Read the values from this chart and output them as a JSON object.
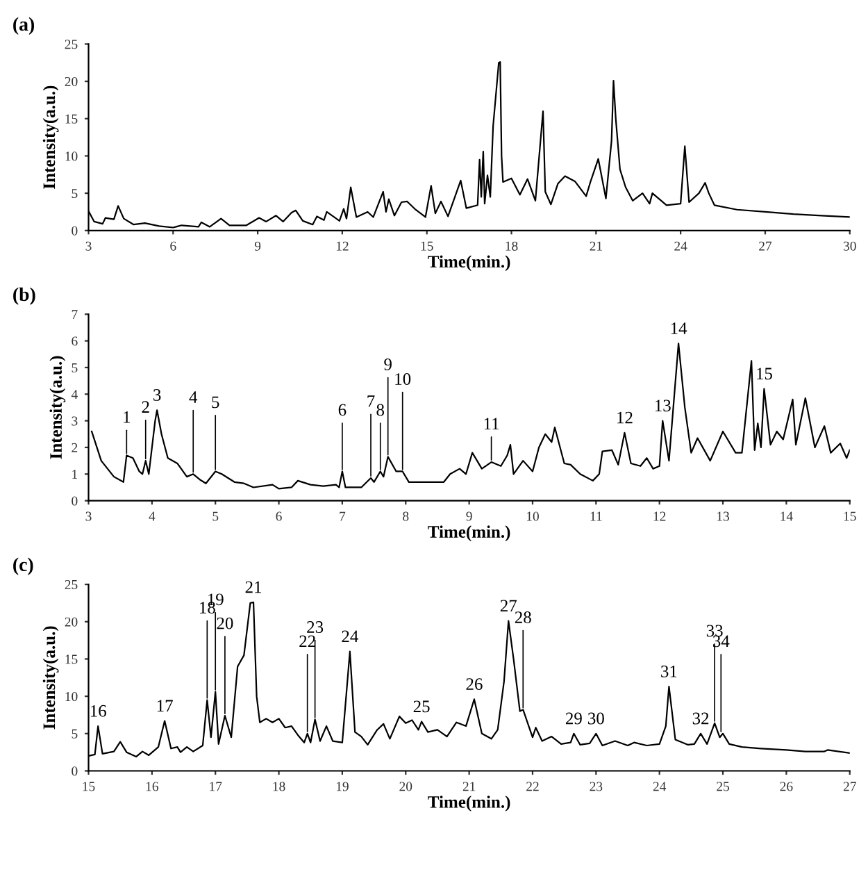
{
  "chart_data": [
    {
      "type": "line",
      "title": "(a)",
      "xlabel": "Time(min.)",
      "ylabel": "Intensity(a.u.)",
      "xlim": [
        3,
        30
      ],
      "xticks": [
        3,
        6,
        9,
        12,
        15,
        18,
        21,
        24,
        27,
        30
      ],
      "ylim": [
        0,
        25
      ],
      "yticks": [
        0,
        5,
        10,
        15,
        20,
        25
      ],
      "grid": false,
      "legend": false,
      "marker": "none",
      "line_style": "solid",
      "series": [
        {
          "color": "#000000",
          "x": [
            3.0,
            3.2,
            3.5,
            3.6,
            3.9,
            4.05,
            4.25,
            4.6,
            5.0,
            5.5,
            6.0,
            6.3,
            6.9,
            7.0,
            7.3,
            7.7,
            8.0,
            8.6,
            9.05,
            9.3,
            9.65,
            9.9,
            10.2,
            10.35,
            10.6,
            10.95,
            11.1,
            11.35,
            11.45,
            11.9,
            12.05,
            12.15,
            12.3,
            12.5,
            12.9,
            13.1,
            13.45,
            13.55,
            13.65,
            13.85,
            14.1,
            14.3,
            14.6,
            14.95,
            15.15,
            15.3,
            15.5,
            15.75,
            16.2,
            16.4,
            16.8,
            16.87,
            16.93,
            17.0,
            17.05,
            17.15,
            17.25,
            17.35,
            17.55,
            17.6,
            17.65,
            17.7,
            18.0,
            18.3,
            18.57,
            18.85,
            19.12,
            19.2,
            19.4,
            19.65,
            19.9,
            20.25,
            20.65,
            20.8,
            21.08,
            21.35,
            21.55,
            21.62,
            21.7,
            21.85,
            22.05,
            22.3,
            22.65,
            22.9,
            23.0,
            23.5,
            24.0,
            24.15,
            24.3,
            24.65,
            24.87,
            25.0,
            25.2,
            26.0,
            27.0,
            28.0,
            29.0,
            30.0
          ],
          "values": [
            2.6,
            1.2,
            0.9,
            1.7,
            1.5,
            3.3,
            1.6,
            0.8,
            1.0,
            0.6,
            0.4,
            0.7,
            0.5,
            1.1,
            0.5,
            1.6,
            0.7,
            0.7,
            1.7,
            1.2,
            2.0,
            1.2,
            2.4,
            2.7,
            1.3,
            0.8,
            1.9,
            1.4,
            2.5,
            1.3,
            2.9,
            1.6,
            5.8,
            1.8,
            2.5,
            1.8,
            5.2,
            2.5,
            4.2,
            2.0,
            3.8,
            3.9,
            2.8,
            1.8,
            6.0,
            2.3,
            3.9,
            1.9,
            6.7,
            3.0,
            3.4,
            9.5,
            4.5,
            10.6,
            3.6,
            7.4,
            4.5,
            14.0,
            22.5,
            22.6,
            10.0,
            6.5,
            7.0,
            4.8,
            6.9,
            4.0,
            16.0,
            5.2,
            3.5,
            6.3,
            7.3,
            6.6,
            4.6,
            6.5,
            9.6,
            4.3,
            12.0,
            20.1,
            15.0,
            8.2,
            5.8,
            4.0,
            5.0,
            3.6,
            5.0,
            3.4,
            3.6,
            11.3,
            3.8,
            5.0,
            6.4,
            5.0,
            3.4,
            2.8,
            2.5,
            2.2,
            2.0,
            1.8
          ]
        }
      ]
    },
    {
      "type": "line",
      "title": "(b)",
      "xlabel": "Time(min.)",
      "ylabel": "Intensity(a.u.)",
      "xlim": [
        3,
        15
      ],
      "xticks": [
        3,
        4,
        5,
        6,
        7,
        8,
        9,
        10,
        11,
        12,
        13,
        14,
        15
      ],
      "ylim": [
        0,
        7
      ],
      "yticks": [
        0,
        1,
        2,
        3,
        4,
        5,
        6,
        7
      ],
      "grid": false,
      "legend": false,
      "marker": "none",
      "line_style": "solid",
      "series": [
        {
          "color": "#000000",
          "x": [
            3.05,
            3.2,
            3.4,
            3.55,
            3.6,
            3.7,
            3.8,
            3.85,
            3.9,
            3.95,
            4.05,
            4.08,
            4.15,
            4.25,
            4.4,
            4.55,
            4.65,
            4.75,
            4.85,
            5.0,
            5.1,
            5.3,
            5.45,
            5.6,
            5.9,
            6.0,
            6.2,
            6.3,
            6.5,
            6.7,
            6.9,
            6.95,
            7.0,
            7.05,
            7.3,
            7.45,
            7.5,
            7.6,
            7.65,
            7.72,
            7.85,
            7.95,
            8.05,
            8.3,
            8.6,
            8.7,
            8.85,
            8.95,
            9.05,
            9.2,
            9.35,
            9.5,
            9.6,
            9.65,
            9.7,
            9.85,
            10.0,
            10.1,
            10.2,
            10.3,
            10.35,
            10.5,
            10.6,
            10.75,
            10.95,
            11.05,
            11.1,
            11.25,
            11.35,
            11.45,
            11.55,
            11.7,
            11.8,
            11.9,
            12.0,
            12.05,
            12.15,
            12.3,
            12.4,
            12.5,
            12.6,
            12.8,
            13.0,
            13.2,
            13.3,
            13.45,
            13.5,
            13.55,
            13.6,
            13.65,
            13.75,
            13.85,
            13.95,
            14.1,
            14.15,
            14.3,
            14.45,
            14.6,
            14.7,
            14.85,
            14.95,
            15.0
          ],
          "values": [
            2.6,
            1.5,
            0.9,
            0.7,
            1.7,
            1.6,
            1.1,
            1.0,
            1.5,
            1.0,
            3.0,
            3.4,
            2.5,
            1.6,
            1.4,
            0.9,
            1.0,
            0.8,
            0.65,
            1.1,
            1.0,
            0.7,
            0.65,
            0.5,
            0.6,
            0.45,
            0.5,
            0.75,
            0.6,
            0.55,
            0.6,
            0.5,
            1.1,
            0.5,
            0.5,
            0.85,
            0.7,
            1.1,
            0.9,
            1.65,
            1.1,
            1.1,
            0.7,
            0.7,
            0.7,
            1.0,
            1.2,
            1.0,
            1.8,
            1.2,
            1.45,
            1.3,
            1.7,
            2.1,
            1.0,
            1.5,
            1.1,
            2.0,
            2.5,
            2.2,
            2.75,
            1.4,
            1.35,
            1.0,
            0.75,
            1.0,
            1.85,
            1.9,
            1.35,
            2.55,
            1.4,
            1.3,
            1.6,
            1.2,
            1.3,
            3.0,
            1.5,
            5.9,
            3.5,
            1.8,
            2.35,
            1.5,
            2.6,
            1.8,
            1.8,
            5.25,
            1.9,
            2.9,
            2.0,
            4.2,
            2.1,
            2.6,
            2.3,
            3.8,
            2.1,
            3.85,
            2.0,
            2.8,
            1.8,
            2.15,
            1.6,
            1.9
          ]
        }
      ],
      "annotations": [
        {
          "text": "1",
          "x": 3.6,
          "y": 1.7
        },
        {
          "text": "2",
          "x": 3.9,
          "y": 1.5
        },
        {
          "text": "3",
          "x": 4.08,
          "y": 3.4
        },
        {
          "text": "4",
          "x": 4.65,
          "y": 1.0
        },
        {
          "text": "5",
          "x": 5.0,
          "y": 1.1
        },
        {
          "text": "6",
          "x": 7.0,
          "y": 1.1
        },
        {
          "text": "7",
          "x": 7.45,
          "y": 0.85
        },
        {
          "text": "8",
          "x": 7.6,
          "y": 1.1
        },
        {
          "text": "9",
          "x": 7.72,
          "y": 1.65
        },
        {
          "text": "10",
          "x": 7.95,
          "y": 1.1
        },
        {
          "text": "11",
          "x": 9.35,
          "y": 1.45
        },
        {
          "text": "12",
          "x": 11.45,
          "y": 2.55
        },
        {
          "text": "13",
          "x": 12.05,
          "y": 3.0
        },
        {
          "text": "14",
          "x": 12.3,
          "y": 5.9
        },
        {
          "text": "15",
          "x": 13.65,
          "y": 4.2
        }
      ]
    },
    {
      "type": "line",
      "title": "(c)",
      "xlabel": "Time(min.)",
      "ylabel": "Intensity(a.u.)",
      "xlim": [
        15,
        27
      ],
      "xticks": [
        15,
        16,
        17,
        18,
        19,
        20,
        21,
        22,
        23,
        24,
        25,
        26,
        27
      ],
      "ylim": [
        0,
        25
      ],
      "yticks": [
        0,
        5,
        10,
        15,
        20,
        25
      ],
      "grid": false,
      "legend": false,
      "marker": "none",
      "line_style": "solid",
      "series": [
        {
          "color": "#000000",
          "x": [
            15.0,
            15.1,
            15.15,
            15.22,
            15.4,
            15.5,
            15.6,
            15.75,
            15.85,
            15.95,
            16.1,
            16.2,
            16.3,
            16.4,
            16.45,
            16.55,
            16.65,
            16.8,
            16.87,
            16.93,
            17.0,
            17.05,
            17.15,
            17.25,
            17.35,
            17.45,
            17.55,
            17.6,
            17.65,
            17.7,
            17.8,
            17.9,
            18.0,
            18.1,
            18.2,
            18.3,
            18.4,
            18.45,
            18.5,
            18.57,
            18.65,
            18.75,
            18.85,
            19.0,
            19.12,
            19.2,
            19.3,
            19.4,
            19.55,
            19.65,
            19.75,
            19.9,
            20.0,
            20.1,
            20.2,
            20.25,
            20.35,
            20.5,
            20.65,
            20.8,
            20.95,
            21.08,
            21.2,
            21.35,
            21.45,
            21.55,
            21.62,
            21.7,
            21.8,
            21.85,
            22.0,
            22.05,
            22.15,
            22.3,
            22.45,
            22.6,
            22.65,
            22.75,
            22.9,
            23.0,
            23.1,
            23.3,
            23.5,
            23.6,
            23.8,
            24.0,
            24.1,
            24.15,
            24.25,
            24.45,
            24.55,
            24.65,
            24.75,
            24.87,
            24.95,
            25.0,
            25.1,
            25.3,
            25.6,
            26.0,
            26.3,
            26.6,
            26.65,
            27.0
          ],
          "values": [
            2.0,
            2.2,
            6.0,
            2.3,
            2.6,
            3.9,
            2.5,
            1.9,
            2.6,
            2.1,
            3.2,
            6.7,
            3.0,
            3.2,
            2.5,
            3.2,
            2.6,
            3.4,
            9.5,
            4.5,
            10.6,
            3.6,
            7.4,
            4.5,
            14.0,
            15.5,
            22.5,
            22.6,
            10.0,
            6.5,
            7.0,
            6.5,
            7.0,
            5.8,
            6.0,
            4.8,
            3.8,
            5.0,
            3.8,
            6.9,
            4.0,
            6.0,
            4.0,
            3.8,
            16.0,
            5.2,
            4.6,
            3.5,
            5.5,
            6.3,
            4.3,
            7.3,
            6.4,
            6.8,
            5.5,
            6.6,
            5.2,
            5.5,
            4.6,
            6.5,
            6.0,
            9.6,
            5.0,
            4.3,
            5.5,
            12.0,
            20.1,
            15.0,
            8.0,
            8.2,
            4.5,
            5.8,
            4.0,
            4.6,
            3.6,
            3.8,
            5.0,
            3.5,
            3.7,
            5.0,
            3.4,
            4.0,
            3.4,
            3.8,
            3.4,
            3.6,
            6.0,
            11.3,
            4.2,
            3.5,
            3.6,
            5.0,
            3.6,
            6.4,
            4.5,
            5.0,
            3.6,
            3.2,
            3.0,
            2.8,
            2.6,
            2.6,
            2.8,
            2.4
          ]
        }
      ],
      "annotations": [
        {
          "text": "16",
          "x": 15.15,
          "y": 6.0
        },
        {
          "text": "17",
          "x": 16.2,
          "y": 6.7
        },
        {
          "text": "18",
          "x": 16.87,
          "y": 9.5
        },
        {
          "text": "19",
          "x": 17.0,
          "y": 10.6
        },
        {
          "text": "20",
          "x": 17.15,
          "y": 7.4
        },
        {
          "text": "21",
          "x": 17.6,
          "y": 22.6
        },
        {
          "text": "22",
          "x": 18.45,
          "y": 5.0
        },
        {
          "text": "23",
          "x": 18.57,
          "y": 6.9
        },
        {
          "text": "24",
          "x": 19.12,
          "y": 16.0
        },
        {
          "text": "25",
          "x": 20.25,
          "y": 6.6
        },
        {
          "text": "26",
          "x": 21.08,
          "y": 9.6
        },
        {
          "text": "27",
          "x": 21.62,
          "y": 20.1
        },
        {
          "text": "28",
          "x": 21.85,
          "y": 8.2
        },
        {
          "text": "29",
          "x": 22.65,
          "y": 5.0
        },
        {
          "text": "30",
          "x": 23.0,
          "y": 5.0
        },
        {
          "text": "31",
          "x": 24.15,
          "y": 11.3
        },
        {
          "text": "32",
          "x": 24.65,
          "y": 5.0
        },
        {
          "text": "33",
          "x": 24.87,
          "y": 6.4
        },
        {
          "text": "34",
          "x": 24.97,
          "y": 5.0
        }
      ]
    }
  ]
}
